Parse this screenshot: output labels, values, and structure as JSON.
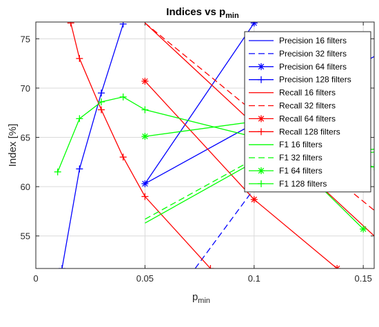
{
  "chart_data": {
    "type": "line",
    "title": "Indices vs p",
    "title_subscript": "min",
    "xlabel": "p",
    "xlabel_subscript": "min",
    "ylabel": "Index [%]",
    "xlim": [
      0,
      0.155
    ],
    "ylim": [
      51.7,
      76.7
    ],
    "xticks": [
      0,
      0.05,
      0.1,
      0.15
    ],
    "xtick_labels": [
      "0",
      "0.05",
      "0.1",
      "0.15"
    ],
    "yticks": [
      55,
      60,
      65,
      70,
      75
    ],
    "ytick_labels": [
      "55",
      "60",
      "65",
      "70",
      "75"
    ],
    "grid": true,
    "legend_position": "top-right",
    "series": [
      {
        "name": "Precision 16 filters",
        "color": "#0000ff",
        "dash": "solid",
        "marker": "none",
        "x": [
          0.05,
          0.1,
          0.155
        ],
        "y": [
          60.3,
          66.4,
          73.2
        ]
      },
      {
        "name": "Precision 32 filters",
        "color": "#0000ff",
        "dash": "dashed",
        "marker": "none",
        "x": [
          0.073,
          0.1,
          0.105
        ],
        "y": [
          51.7,
          59.8,
          60.8
        ]
      },
      {
        "name": "Precision 64 filters",
        "color": "#0000ff",
        "dash": "solid",
        "marker": "asterisk",
        "x": [
          0.05,
          0.1
        ],
        "y": [
          60.3,
          76.6
        ]
      },
      {
        "name": "Precision 128 filters",
        "color": "#0000ff",
        "dash": "solid",
        "marker": "plus",
        "x": [
          0.012,
          0.02,
          0.03,
          0.04
        ],
        "y": [
          51.7,
          61.8,
          69.5,
          76.5
        ]
      },
      {
        "name": "Recall 16 filters",
        "color": "#ff0000",
        "dash": "solid",
        "marker": "none",
        "x": [
          0.05,
          0.155
        ],
        "y": [
          76.6,
          55.0
        ]
      },
      {
        "name": "Recall 32 filters",
        "color": "#ff0000",
        "dash": "dashed",
        "marker": "none",
        "x": [
          0.05,
          0.155
        ],
        "y": [
          76.6,
          57.6
        ]
      },
      {
        "name": "Recall 64 filters",
        "color": "#ff0000",
        "dash": "solid",
        "marker": "asterisk",
        "x": [
          0.05,
          0.1,
          0.138
        ],
        "y": [
          70.7,
          58.7,
          51.7
        ]
      },
      {
        "name": "Recall 128 filters",
        "color": "#ff0000",
        "dash": "solid",
        "marker": "plus",
        "x": [
          0.016,
          0.02,
          0.03,
          0.04,
          0.05,
          0.08
        ],
        "y": [
          76.6,
          73.0,
          67.8,
          63.0,
          59.0,
          51.7
        ]
      },
      {
        "name": "F1 16 filters",
        "color": "#00ff00",
        "dash": "solid",
        "marker": "none",
        "x": [
          0.05,
          0.1,
          0.155
        ],
        "y": [
          56.3,
          62.5,
          63.5
        ]
      },
      {
        "name": "F1 32 filters",
        "color": "#00ff00",
        "dash": "dashed",
        "marker": "none",
        "x": [
          0.05,
          0.1,
          0.155
        ],
        "y": [
          56.7,
          62.8,
          63.8
        ]
      },
      {
        "name": "F1 64 filters",
        "color": "#00ff00",
        "dash": "solid",
        "marker": "asterisk",
        "x": [
          0.05,
          0.1,
          0.15
        ],
        "y": [
          65.1,
          66.6,
          55.7
        ]
      },
      {
        "name": "F1 128 filters",
        "color": "#00ff00",
        "dash": "solid",
        "marker": "plus",
        "x": [
          0.01,
          0.02,
          0.03,
          0.04,
          0.05,
          0.155
        ],
        "y": [
          61.5,
          66.9,
          68.6,
          69.1,
          67.8,
          62.0
        ]
      }
    ]
  }
}
